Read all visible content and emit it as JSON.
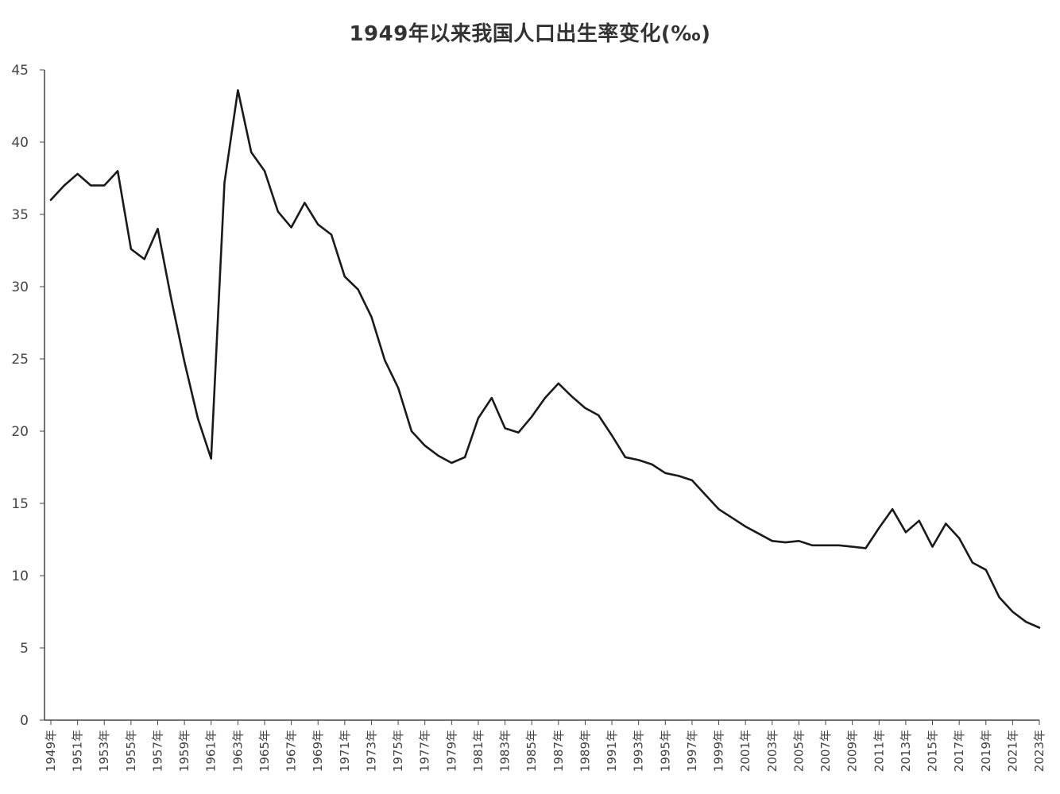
{
  "chart_data": {
    "type": "line",
    "title": "1949年以来我国人口出生率变化(‰)",
    "xlabel": "",
    "ylabel": "",
    "ylim": [
      0,
      45
    ],
    "yticks": [
      0,
      5,
      10,
      15,
      20,
      25,
      30,
      35,
      40,
      45
    ],
    "x_tick_labels": [
      "1949年",
      "1951年",
      "1953年",
      "1955年",
      "1957年",
      "1959年",
      "1961年",
      "1963年",
      "1965年",
      "1967年",
      "1969年",
      "1971年",
      "1973年",
      "1975年",
      "1977年",
      "1979年",
      "1981年",
      "1983年",
      "1985年",
      "1987年",
      "1989年",
      "1991年",
      "1993年",
      "1995年",
      "1997年",
      "1999年",
      "2001年",
      "2003年",
      "2005年",
      "2007年",
      "2009年",
      "2011年",
      "2013年",
      "2015年",
      "2017年",
      "2019年",
      "2021年",
      "2023年"
    ],
    "grid": false,
    "legend": "none",
    "colors": {
      "line": "#1a1a1a",
      "axis": "#444444",
      "text": "#444444"
    },
    "series": [
      {
        "x": [
          1949,
          1950,
          1951,
          1952,
          1953,
          1954,
          1955,
          1956,
          1957,
          1958,
          1959,
          1960,
          1961,
          1962,
          1963,
          1964,
          1965,
          1966,
          1967,
          1968,
          1969,
          1970,
          1971,
          1972,
          1973,
          1974,
          1975,
          1976,
          1977,
          1978,
          1979,
          1980,
          1981,
          1982,
          1983,
          1984,
          1985,
          1986,
          1987,
          1988,
          1989,
          1990,
          1991,
          1992,
          1993,
          1994,
          1995,
          1996,
          1997,
          1998,
          1999,
          2000,
          2001,
          2002,
          2003,
          2004,
          2005,
          2006,
          2007,
          2008,
          2009,
          2010,
          2011,
          2012,
          2013,
          2014,
          2015,
          2016,
          2017,
          2018,
          2019,
          2020,
          2021,
          2022,
          2023
        ],
        "values": [
          36.0,
          37.0,
          37.8,
          37.0,
          37.0,
          38.0,
          32.6,
          31.9,
          34.0,
          29.2,
          24.8,
          20.9,
          18.1,
          37.2,
          43.6,
          39.3,
          38.0,
          35.2,
          34.1,
          35.8,
          34.3,
          33.6,
          30.7,
          29.8,
          27.9,
          24.9,
          23.0,
          20.0,
          19.0,
          18.3,
          17.8,
          18.2,
          20.9,
          22.3,
          20.2,
          19.9,
          21.0,
          22.3,
          23.3,
          22.4,
          21.6,
          21.1,
          19.7,
          18.2,
          18.0,
          17.7,
          17.1,
          16.9,
          16.6,
          15.6,
          14.6,
          14.0,
          13.4,
          12.9,
          12.4,
          12.3,
          12.4,
          12.1,
          12.1,
          12.1,
          12.0,
          11.9,
          13.3,
          14.6,
          13.0,
          13.8,
          12.0,
          13.6,
          12.6,
          10.9,
          10.4,
          8.5,
          7.5,
          6.8,
          6.4
        ]
      }
    ]
  }
}
